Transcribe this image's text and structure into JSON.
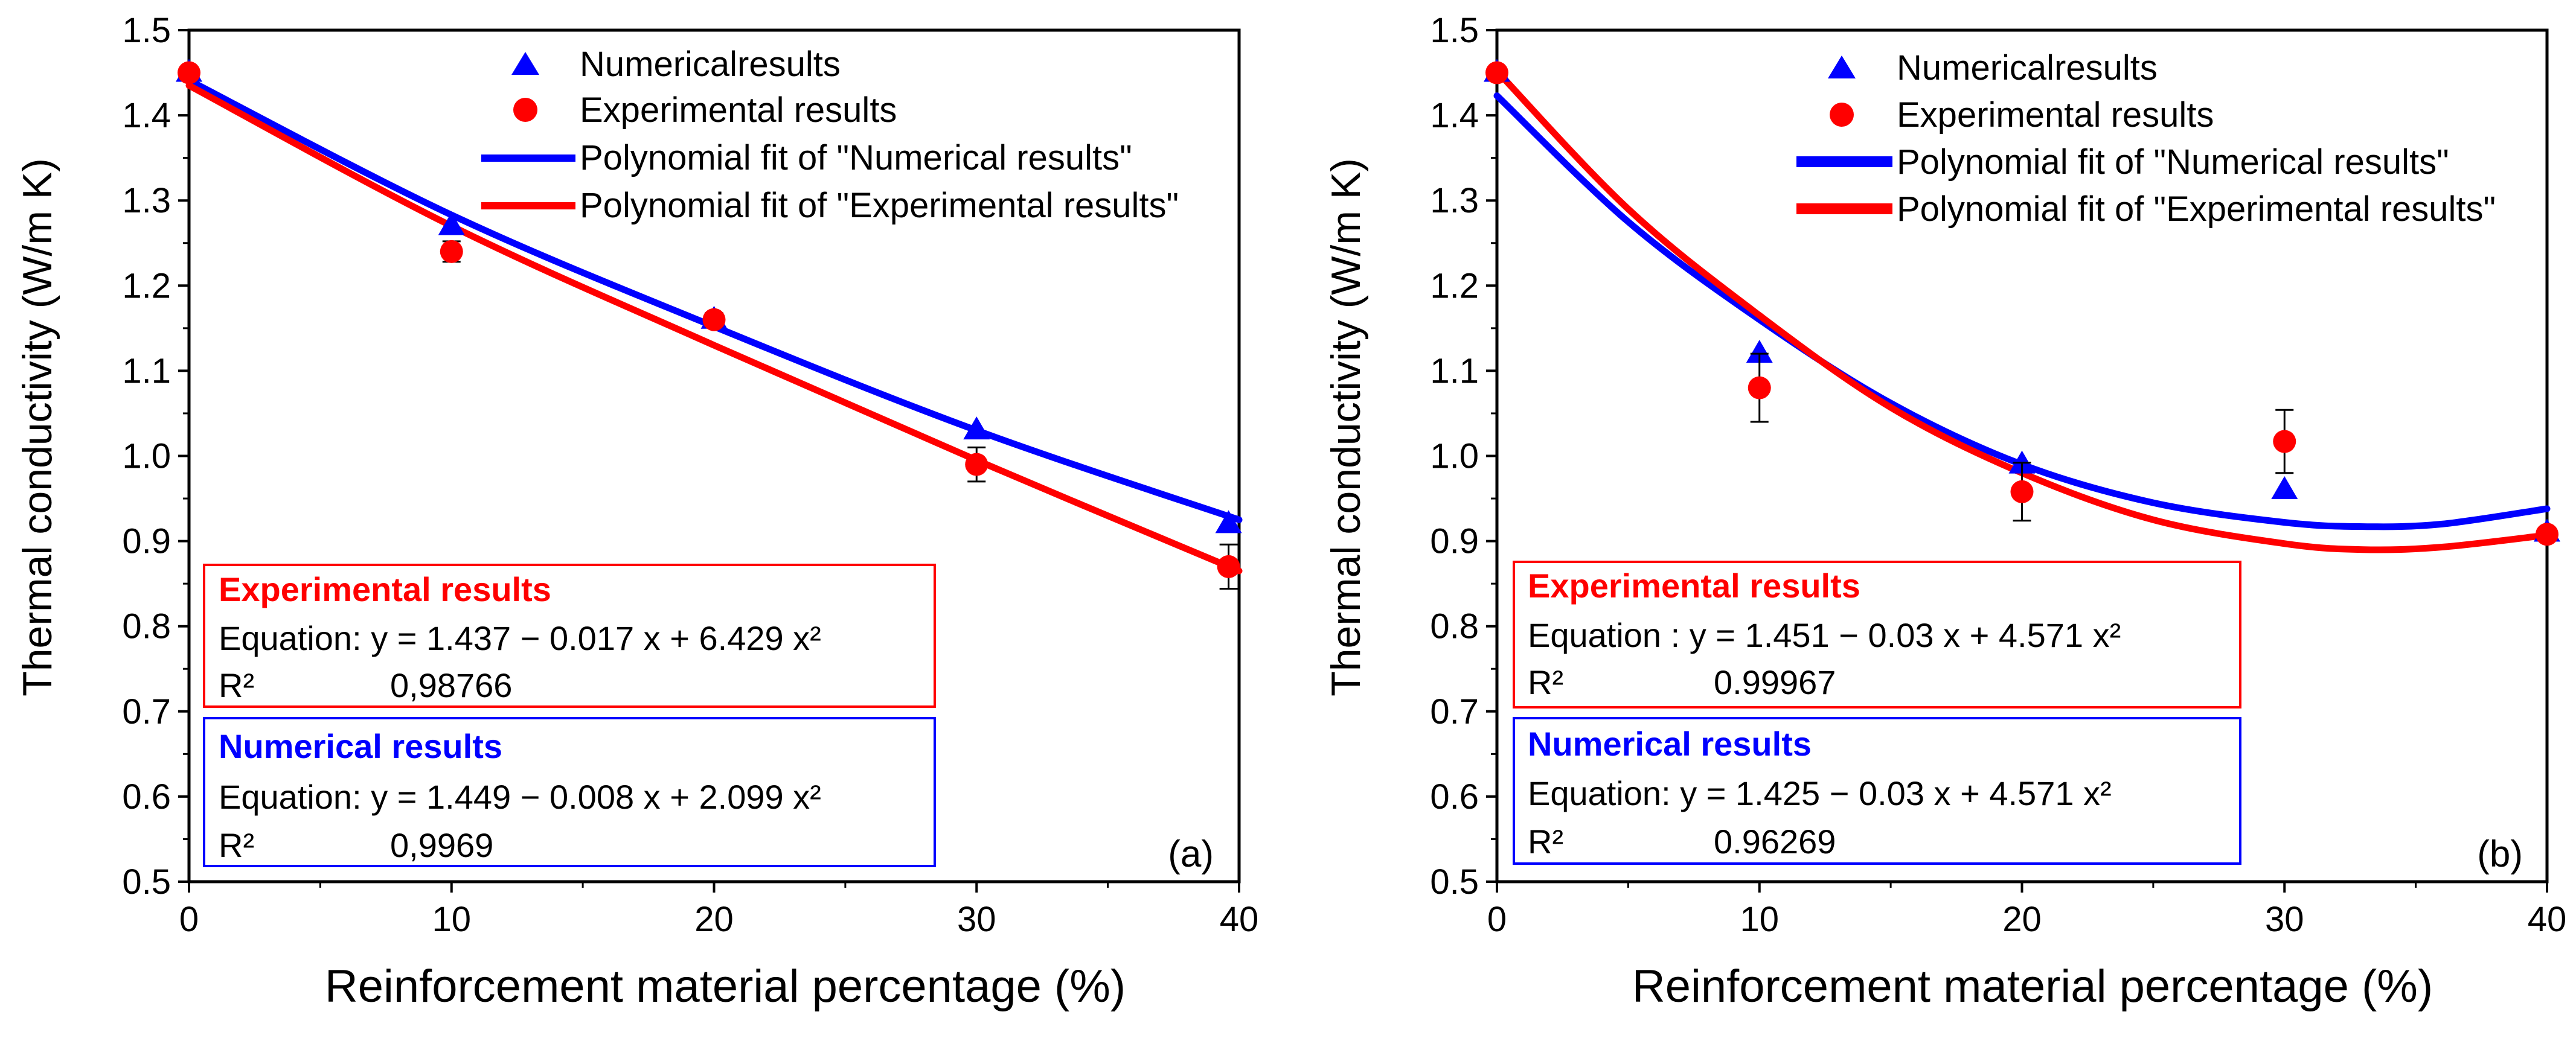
{
  "colors": {
    "numerical": "#0000ff",
    "experimental": "#ff0000",
    "axis": "#000000"
  },
  "chart_data": [
    {
      "type": "scatter",
      "panel_label": "(a)",
      "xlabel": "Reinforcement material percentage (%)",
      "ylabel": "Thermal conductivity (W/m K)",
      "xlim": [
        0,
        40
      ],
      "ylim": [
        0.5,
        1.5
      ],
      "xticks": [
        "0",
        "10",
        "20",
        "30",
        "40"
      ],
      "yticks": [
        "0.5",
        "0.6",
        "0.7",
        "0.8",
        "0.9",
        "1.0",
        "1.1",
        "1.2",
        "1.3",
        "1.4",
        "1.5"
      ],
      "legend": {
        "numerical": "Numericalresults",
        "experimental": "Experimental results",
        "fit_numerical": "Polynomial fit of \"Numerical results\"",
        "fit_experimental": "Polynomial fit of \"Experimental results\""
      },
      "series": [
        {
          "name": "Numericalresults",
          "marker": "triangle",
          "color": "#0000ff",
          "x": [
            0,
            10,
            20,
            30,
            39.6
          ],
          "y": [
            1.45,
            1.27,
            1.16,
            1.03,
            0.92
          ]
        },
        {
          "name": "Experimental results",
          "marker": "circle",
          "color": "#ff0000",
          "x": [
            0,
            10,
            20,
            30,
            39.6
          ],
          "y": [
            1.45,
            1.24,
            1.16,
            0.99,
            0.87
          ],
          "error": [
            0,
            0.012,
            0.008,
            0.02,
            0.026
          ]
        }
      ],
      "fits": [
        {
          "name": "Polynomial fit of \"Numerical results\"",
          "color": "#0000ff",
          "x": [
            0,
            10,
            20,
            30,
            40
          ],
          "y": [
            1.441,
            1.283,
            1.152,
            1.03,
            0.925
          ]
        },
        {
          "name": "Polynomial fit of \"Experimental results\"",
          "color": "#ff0000",
          "x": [
            0,
            10,
            20,
            30,
            40
          ],
          "y": [
            1.435,
            1.27,
            1.13,
            0.995,
            0.865
          ]
        }
      ],
      "boxes": [
        {
          "title": "Experimental results",
          "color": "#ff0000",
          "equation": "Equation: y = 1.437 − 0.017 x + 6.429 x²",
          "r2_label": "R²",
          "r2_value": "0,98766"
        },
        {
          "title": "Numerical results",
          "color": "#0000ff",
          "equation": "Equation: y = 1.449 − 0.008 x + 2.099 x²",
          "r2_label": "R²",
          "r2_value": "0,9969"
        }
      ]
    },
    {
      "type": "scatter",
      "panel_label": "(b)",
      "xlabel": "Reinforcement material percentage (%)",
      "ylabel": "Thermal conductivity (W/m K)",
      "xlim": [
        0,
        40
      ],
      "ylim": [
        0.5,
        1.5
      ],
      "xticks": [
        "0",
        "10",
        "20",
        "30",
        "40"
      ],
      "yticks": [
        "0.5",
        "0.6",
        "0.7",
        "0.8",
        "0.9",
        "1.0",
        "1.1",
        "1.2",
        "1.3",
        "1.4",
        "1.5"
      ],
      "legend": {
        "numerical": "Numericalresults",
        "experimental": "Experimental results",
        "fit_numerical": "Polynomial fit of \"Numerical results\"",
        "fit_experimental": "Polynomial fit of \"Experimental results\""
      },
      "series": [
        {
          "name": "Numericalresults",
          "marker": "triangle",
          "color": "#0000ff",
          "x": [
            0,
            10,
            20,
            30,
            40
          ],
          "y": [
            1.45,
            1.12,
            0.99,
            0.96,
            0.91
          ]
        },
        {
          "name": "Experimental results",
          "marker": "circle",
          "color": "#ff0000",
          "x": [
            0,
            10,
            20,
            30,
            40
          ],
          "y": [
            1.45,
            1.08,
            0.958,
            1.017,
            0.908
          ],
          "error": [
            0,
            0.04,
            0.034,
            0.037,
            0.006
          ]
        }
      ],
      "fits": [
        {
          "name": "Polynomial fit of \"Numerical results\"",
          "color": "#0000ff",
          "x": [
            0,
            5,
            10,
            15,
            20,
            25,
            30,
            33,
            36,
            40
          ],
          "y": [
            1.423,
            1.275,
            1.16,
            1.062,
            0.99,
            0.945,
            0.922,
            0.917,
            0.92,
            0.938
          ]
        },
        {
          "name": "Polynomial fit of \"Experimental results\"",
          "color": "#ff0000",
          "x": [
            0,
            5,
            10,
            15,
            20,
            25,
            30,
            33,
            36,
            40
          ],
          "y": [
            1.452,
            1.29,
            1.165,
            1.057,
            0.98,
            0.925,
            0.897,
            0.89,
            0.893,
            0.907
          ]
        }
      ],
      "boxes": [
        {
          "title": "Experimental results",
          "color": "#ff0000",
          "equation": "Equation : y = 1.451 − 0.03 x + 4.571 x²",
          "r2_label": "R²",
          "r2_value": "0.99967"
        },
        {
          "title": "Numerical results",
          "color": "#0000ff",
          "equation": "Equation: y = 1.425 − 0.03 x + 4.571 x²",
          "r2_label": "R²",
          "r2_value": "0.96269"
        }
      ]
    }
  ]
}
